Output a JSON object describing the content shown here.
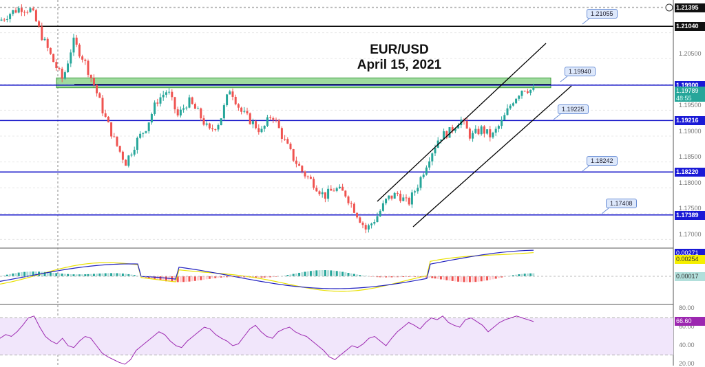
{
  "title": {
    "line1": "EUR/USD",
    "line2": "April 15, 2021"
  },
  "chart_data": [
    {
      "type": "candlestick",
      "pane": "price",
      "ylim": [
        1.1665,
        1.2155
      ],
      "ticks": [
        "1.20500",
        "1.19500",
        "1.19000",
        "1.18500",
        "1.18000",
        "1.17500",
        "1.17000"
      ],
      "approx_close_path": [
        1.2115,
        1.213,
        1.214,
        1.2135,
        1.2085,
        1.204,
        1.2,
        1.2075,
        1.204,
        1.199,
        1.193,
        1.188,
        1.184,
        1.188,
        1.191,
        1.196,
        1.198,
        1.193,
        1.196,
        1.1935,
        1.19,
        1.192,
        1.1985,
        1.194,
        1.192,
        1.19,
        1.1935,
        1.189,
        1.185,
        1.182,
        1.18,
        1.1775,
        1.179,
        1.178,
        1.1745,
        1.171,
        1.1735,
        1.177,
        1.178,
        1.176,
        1.18,
        1.185,
        1.189,
        1.19,
        1.1925,
        1.189,
        1.1905,
        1.189,
        1.192,
        1.196,
        1.1985,
        1.1979
      ],
      "horizontal_levels": [
        {
          "value": 1.2104,
          "label": "1.21040",
          "color": "#000000"
        },
        {
          "value": 1.199,
          "label": "1.19900",
          "color": "#1010c8"
        },
        {
          "value": 1.19216,
          "label": "1.19216",
          "color": "#1010c8"
        },
        {
          "value": 1.1822,
          "label": "1.18220",
          "color": "#1010c8"
        },
        {
          "value": 1.17389,
          "label": "1.17389",
          "color": "#1010c8"
        }
      ],
      "callouts": [
        "1.21055",
        "1.19940",
        "1.19225",
        "1.18242",
        "1.17408"
      ],
      "last_price": {
        "value": "1.19789",
        "countdown": "48:55",
        "color": "#26a69a"
      },
      "crosshair_price": "1.21395",
      "zone": {
        "from": 1.1985,
        "to": 1.2004,
        "color": "#7fcf7f"
      },
      "channel": true
    },
    {
      "type": "line",
      "pane": "macd",
      "labels": [
        "0.00271",
        "0.00254",
        "0.00017"
      ],
      "colors": {
        "macd": "#2020c0",
        "signal": "#e8e000"
      }
    },
    {
      "type": "line",
      "pane": "rsi",
      "ylim": [
        20,
        85
      ],
      "ticks": [
        "80.00",
        "60.00",
        "40.00",
        "20.00"
      ],
      "band": [
        30,
        70
      ],
      "last": "66.60",
      "values": [
        48,
        52,
        50,
        55,
        62,
        70,
        72,
        60,
        50,
        45,
        42,
        48,
        40,
        38,
        45,
        50,
        48,
        40,
        32,
        28,
        25,
        22,
        20,
        25,
        35,
        40,
        45,
        50,
        55,
        52,
        45,
        40,
        38,
        45,
        50,
        55,
        60,
        58,
        52,
        48,
        45,
        40,
        42,
        50,
        58,
        62,
        55,
        50,
        48,
        55,
        58,
        60,
        55,
        52,
        50,
        45,
        40,
        35,
        28,
        25,
        30,
        35,
        40,
        38,
        42,
        48,
        50,
        45,
        40,
        48,
        55,
        60,
        65,
        62,
        58,
        65,
        70,
        68,
        72,
        65,
        62,
        60,
        68,
        70,
        66,
        62,
        55,
        60,
        65,
        68,
        70,
        72,
        70,
        68,
        66
      ]
    }
  ]
}
